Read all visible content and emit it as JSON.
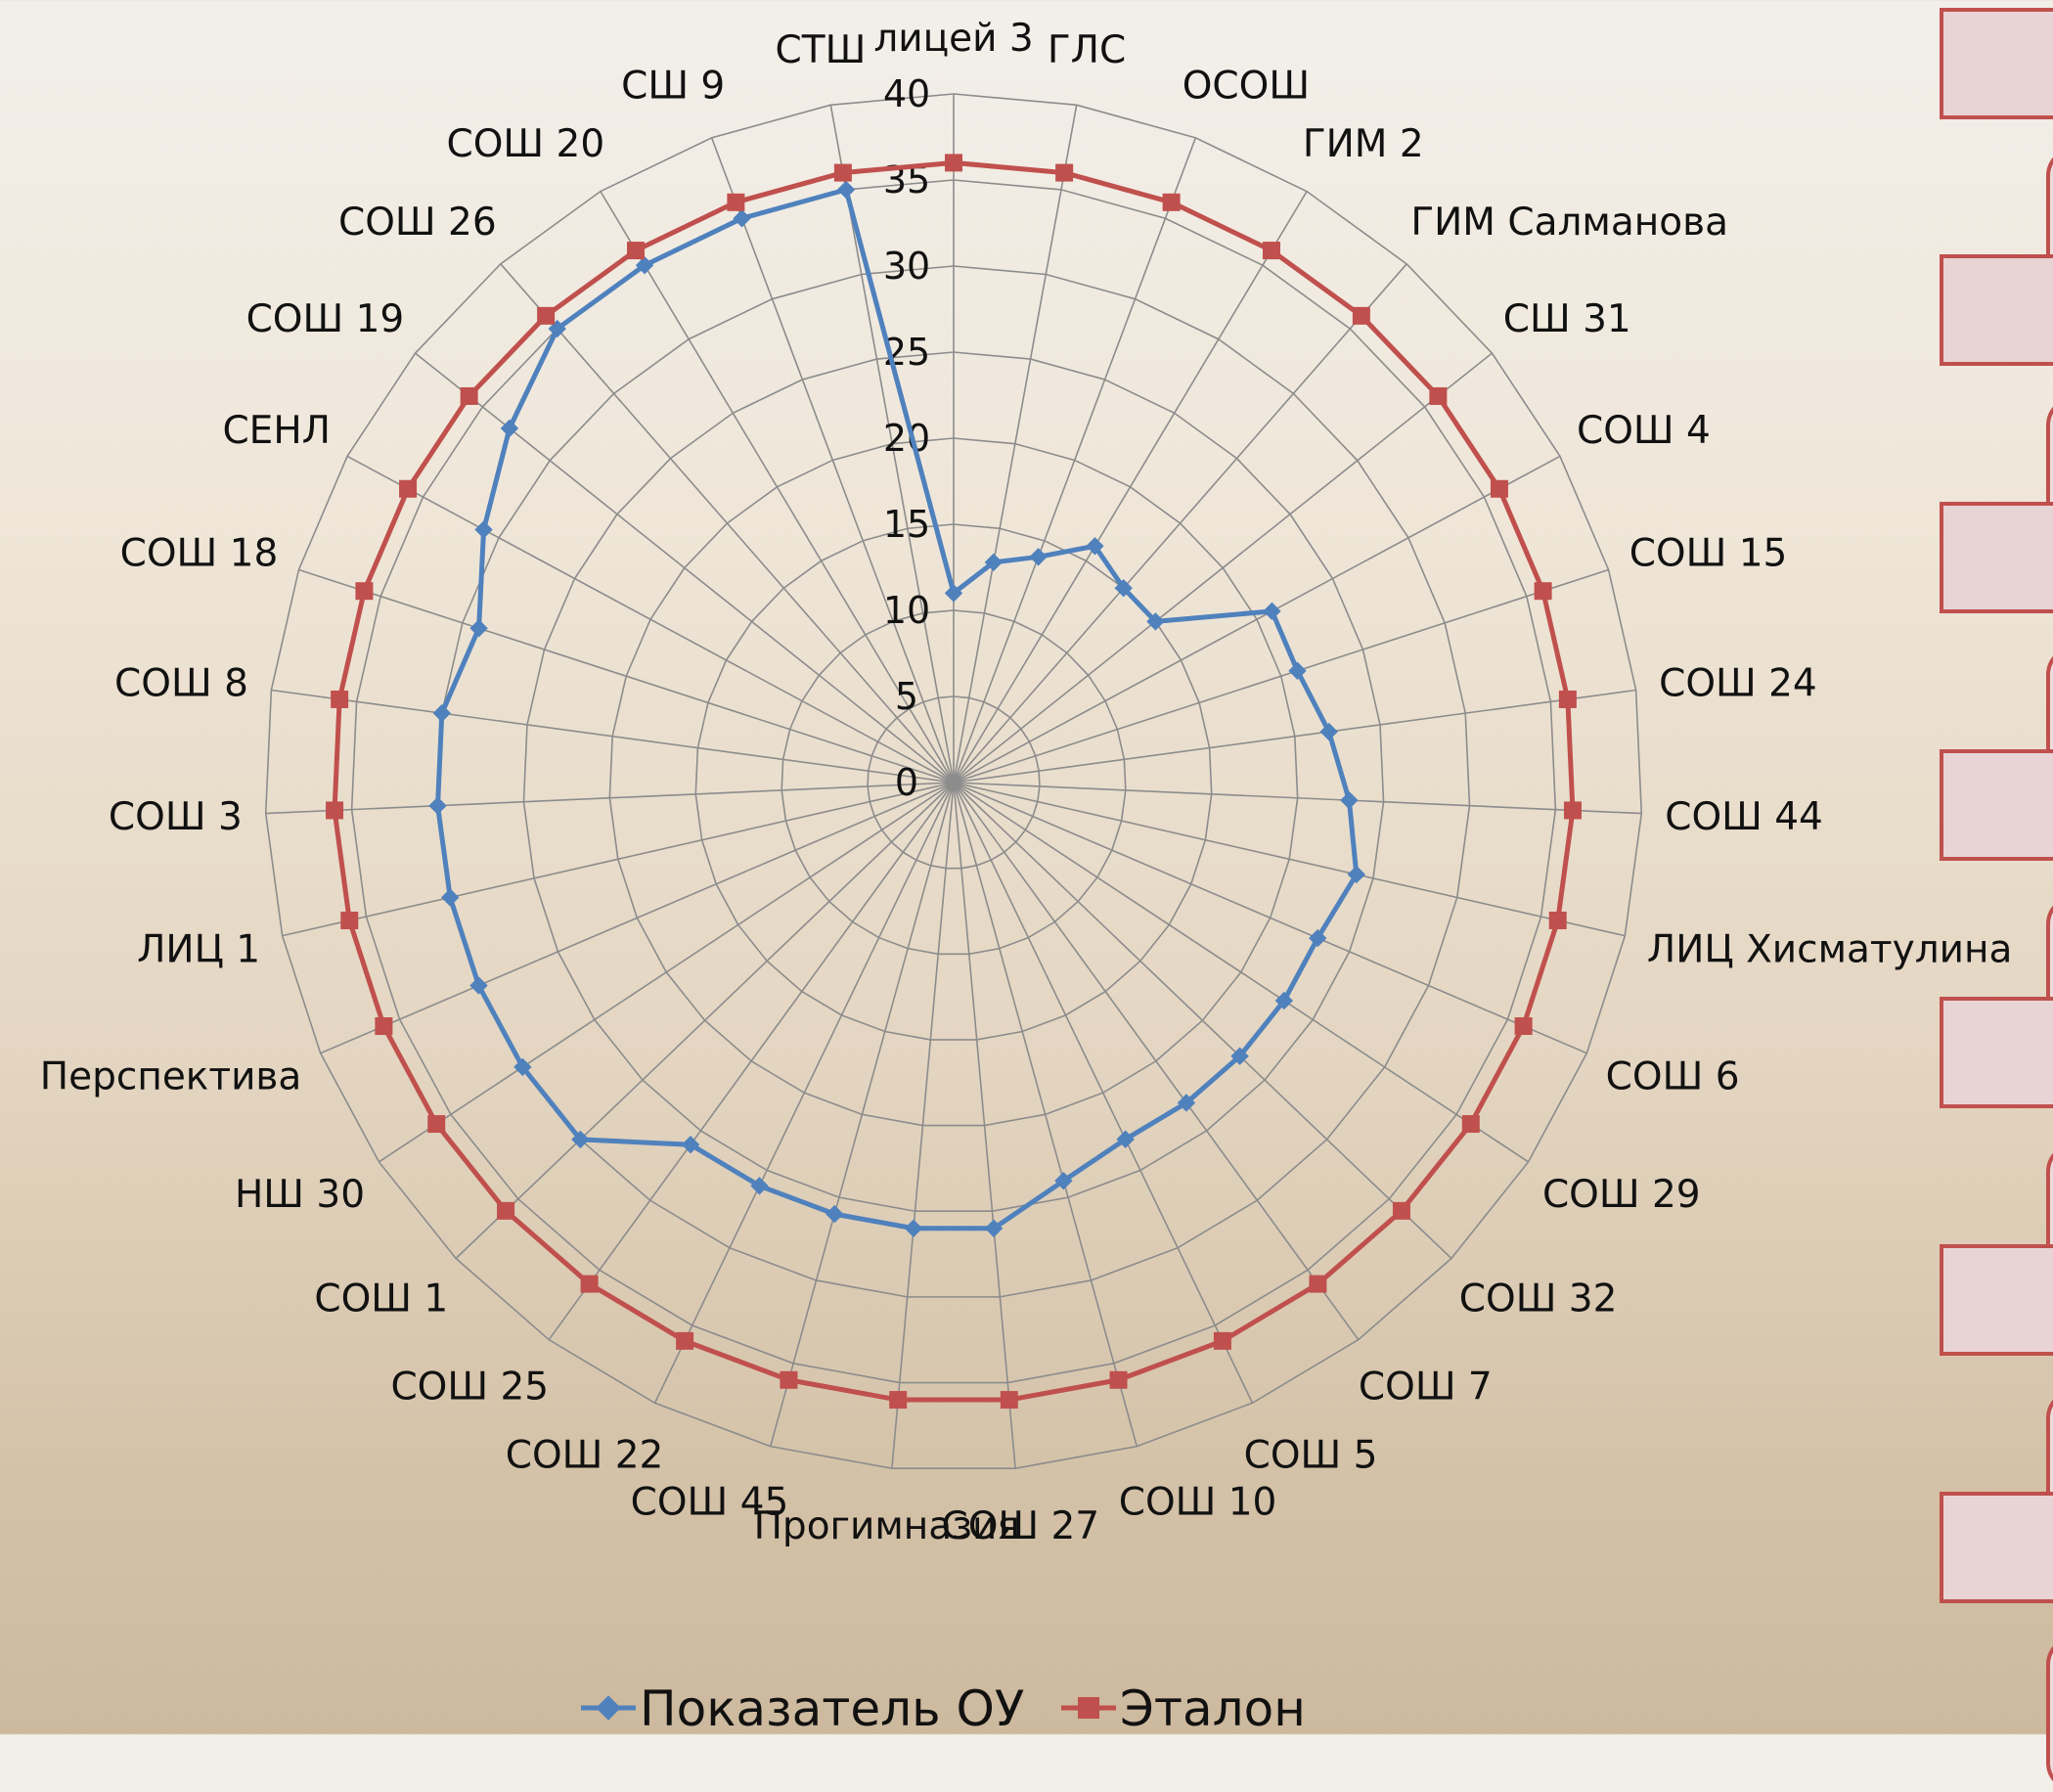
{
  "chart_data": {
    "type": "radar",
    "title": "",
    "categories": [
      "лицей 3",
      "ГЛС",
      "ОСОШ",
      "ГИМ 2",
      "ГИМ Салманова",
      "СШ 31",
      "СОШ 4",
      "СОШ 15",
      "СОШ 24",
      "СОШ 44",
      "ЛИЦ Хисматулина",
      "СОШ 6",
      "СОШ 29",
      "СОШ 32",
      "СОШ 7",
      "СОШ 5",
      "СОШ 10",
      "СОШ 27",
      "Прогимназия",
      "СОШ 45",
      "СОШ 22",
      "СОШ 25",
      "СОШ 1",
      "НШ 30",
      "Перспектива",
      "ЛИЦ 1",
      "СОШ 3",
      "СОШ 8",
      "СОШ 18",
      "СЕНЛ",
      "СОШ 19",
      "СОШ 26",
      "СОШ 20",
      "СШ 9",
      "СТШ"
    ],
    "ylim": [
      0,
      40
    ],
    "ticks": [
      "0",
      "5",
      "10",
      "15",
      "20",
      "25",
      "30",
      "35",
      "40"
    ],
    "grid": true,
    "legend_position": "bottom",
    "series": [
      {
        "name": "Показатель ОУ",
        "color": "#4f81bd",
        "marker": "diamond",
        "values": [
          11,
          13,
          14,
          16,
          15,
          15,
          21,
          21,
          22,
          23,
          24,
          23,
          23,
          23,
          23,
          23,
          24,
          26,
          26,
          26,
          26,
          26,
          30,
          30,
          30,
          30,
          30,
          30,
          29,
          31,
          33,
          35,
          35,
          35,
          35
        ]
      },
      {
        "name": "Эталон",
        "color": "#c0504d",
        "marker": "square",
        "values": [
          36,
          36,
          36,
          36,
          36,
          36,
          36,
          36,
          36,
          36,
          36,
          36,
          36,
          36,
          36,
          36,
          36,
          36,
          36,
          36,
          36,
          36,
          36,
          36,
          36,
          36,
          36,
          36,
          36,
          36,
          36,
          36,
          36,
          36,
          36
        ]
      }
    ]
  }
}
